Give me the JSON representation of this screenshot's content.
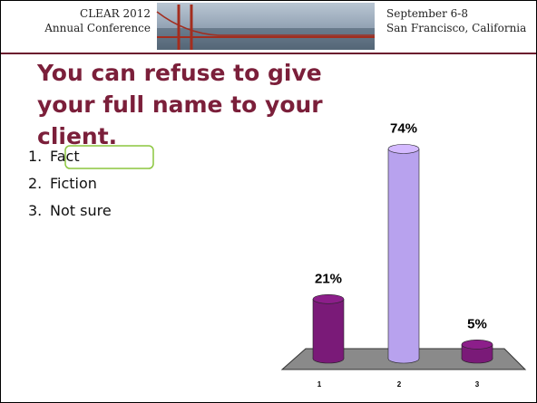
{
  "header": {
    "left": [
      "CLEAR 2012",
      "Annual Conference"
    ],
    "right": [
      "September 6-8",
      "San Francisco, California"
    ]
  },
  "question": "You can refuse to give your full name to your client.",
  "options": [
    {
      "number": "1.",
      "text": "Fact"
    },
    {
      "number": "2.",
      "text": "Fiction"
    },
    {
      "number": "3.",
      "text": "Not sure"
    }
  ],
  "chart_data": {
    "type": "bar3d",
    "categories": [
      "1",
      "2",
      "3"
    ],
    "values": [
      21,
      74,
      5
    ],
    "value_labels": [
      "21%",
      "74%",
      "5%"
    ],
    "colors": [
      "#7a1a78",
      "#b8a2ee",
      "#7a1a78"
    ]
  }
}
